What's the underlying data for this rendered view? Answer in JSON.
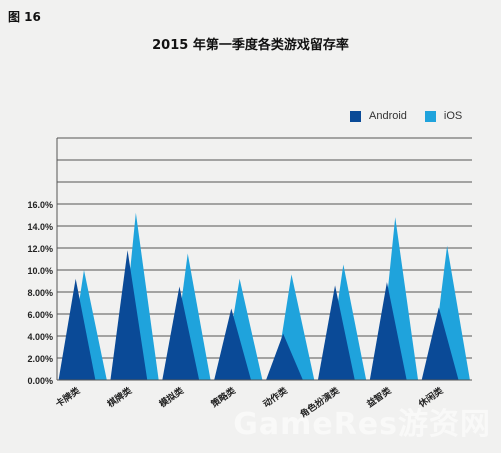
{
  "figure_label": "图 16",
  "watermark": "GameRes游资网",
  "colors": {
    "android": "#0a4a97",
    "ios": "#1fa3dc",
    "grid": "#555555",
    "background": "#f1f1f0"
  },
  "chart_data": {
    "type": "area",
    "title": "2015 年第一季度各类游戏留存率",
    "xlabel": "",
    "ylabel": "",
    "categories": [
      "卡牌类",
      "棋牌类",
      "模拟类",
      "策略类",
      "动作类",
      "角色扮演类",
      "益智类",
      "休闲类"
    ],
    "series": [
      {
        "name": "Android",
        "values": [
          9.2,
          11.8,
          8.5,
          6.5,
          4.2,
          8.6,
          8.9,
          6.6
        ]
      },
      {
        "name": "iOS",
        "values": [
          10.0,
          15.2,
          11.5,
          9.2,
          9.6,
          10.5,
          14.8,
          12.2
        ]
      }
    ],
    "y_ticks": [
      "0.00%",
      "2.00%",
      "4.00%",
      "6.00%",
      "8.00%",
      "10.0%",
      "12.0%",
      "14.0%",
      "16.0%"
    ],
    "ylim": [
      0,
      22
    ],
    "grid": "horizontal",
    "legend": "top-right",
    "style": "triangle-peaks"
  }
}
